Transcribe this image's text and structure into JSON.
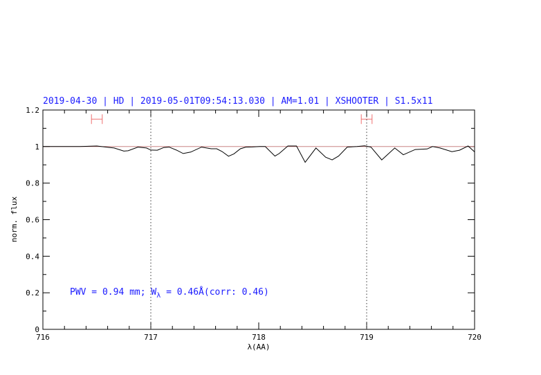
{
  "chart_data": {
    "type": "line",
    "title": "2019-04-30 | HD | 2019-05-01T09:54:13.030 | AM=1.01 | XSHOOTER | S1.5x11",
    "xlabel": "λ(AA)",
    "ylabel": "norm. flux",
    "xlim": [
      716,
      720
    ],
    "ylim": [
      0,
      1.2
    ],
    "x_ticks": [
      "716",
      "717",
      "718",
      "719",
      "720"
    ],
    "y_ticks": [
      "0",
      "0.2",
      "0.4",
      "0.6",
      "0.8",
      "1",
      "1.2"
    ],
    "x_tick_values": [
      716,
      717,
      718,
      719,
      720
    ],
    "y_tick_values": [
      0,
      0.2,
      0.4,
      0.6,
      0.8,
      1,
      1.2
    ],
    "grid": false,
    "reference_line_y": 1,
    "vertical_dotted_lines": [
      717,
      719
    ],
    "interval_markers": [
      {
        "x_from": 716.45,
        "x_to": 716.55,
        "y": 1.15
      },
      {
        "x_from": 718.95,
        "x_to": 719.05,
        "y": 1.15
      }
    ],
    "annotation": {
      "pwv": "PWV = 0.94 mm; W",
      "sub": "λ",
      "rest": " = 0.46Å(corr: 0.46)",
      "x": 716.25,
      "y": 0.19
    },
    "series": [
      {
        "color": "#000000",
        "x": [
          716.0,
          716.02,
          716.34,
          716.5,
          716.6,
          716.66,
          716.75,
          716.79,
          716.88,
          716.96,
          717.0,
          717.06,
          717.12,
          717.17,
          717.24,
          717.3,
          717.37,
          717.47,
          717.56,
          717.61,
          717.66,
          717.72,
          717.77,
          717.83,
          717.88,
          717.94,
          718.01,
          718.06,
          718.15,
          718.19,
          718.27,
          718.35,
          718.43,
          718.53,
          718.62,
          718.68,
          718.74,
          718.82,
          718.91,
          718.98,
          719.04,
          719.14,
          719.26,
          719.34,
          719.45,
          719.56,
          719.61,
          719.68,
          719.79,
          719.86,
          719.94,
          720.0
        ],
        "y": [
          1.0,
          1.0,
          1.0,
          1.003,
          0.996,
          0.992,
          0.975,
          0.977,
          0.997,
          0.992,
          0.981,
          0.98,
          0.995,
          0.997,
          0.98,
          0.962,
          0.97,
          0.997,
          0.988,
          0.988,
          0.973,
          0.947,
          0.96,
          0.988,
          0.997,
          0.998,
          1.0,
          1.0,
          0.948,
          0.962,
          1.003,
          1.003,
          0.914,
          0.992,
          0.942,
          0.927,
          0.948,
          0.997,
          1.0,
          1.004,
          0.997,
          0.927,
          0.992,
          0.955,
          0.984,
          0.987,
          1.0,
          0.992,
          0.972,
          0.98,
          1.003,
          0.971
        ]
      }
    ],
    "colors": {
      "title": "#1a1aff",
      "marker": "#f07070",
      "reference": "#c07070",
      "line": "#000000"
    }
  }
}
